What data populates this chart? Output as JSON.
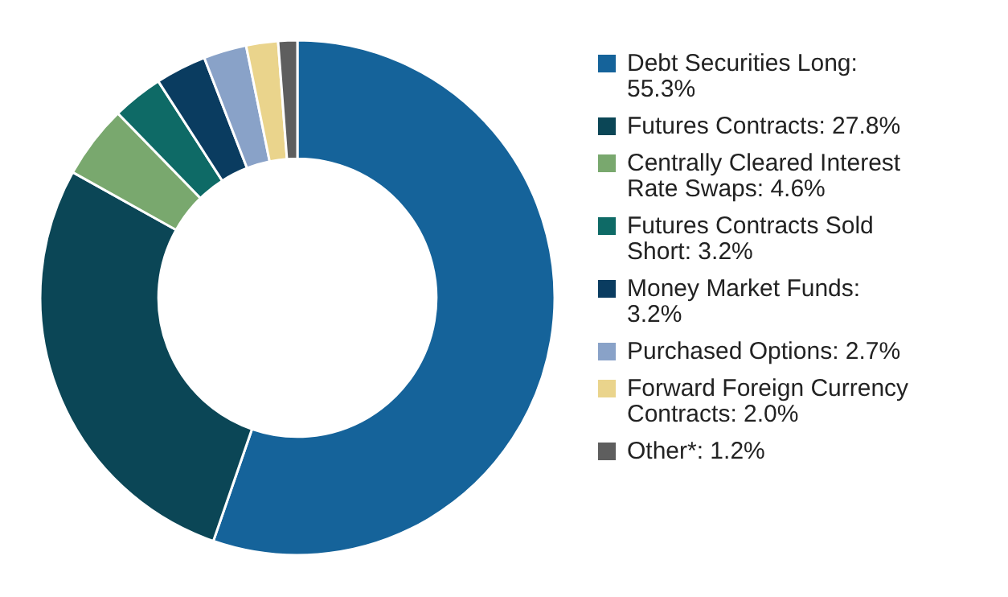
{
  "chart_data": {
    "type": "donut",
    "categories": [
      "Debt Securities Long: 55.3%",
      "Futures Contracts: 27.8%",
      "Centrally Cleared Interest Rate Swaps: 4.6%",
      "Futures Contracts Sold Short: 3.2%",
      "Money Market Funds: 3.2%",
      "Purchased Options: 2.7%",
      "Forward Foreign Currency Contracts: 2.0%",
      "Other*: 1.2%"
    ],
    "values": [
      55.3,
      27.8,
      4.6,
      3.2,
      3.2,
      2.7,
      2.0,
      1.2
    ],
    "colors": [
      "#15639a",
      "#0b4656",
      "#79a86e",
      "#0e6a66",
      "#0a3c60",
      "#89a2c8",
      "#ead48c",
      "#5e5e5e"
    ],
    "legend": "right"
  }
}
